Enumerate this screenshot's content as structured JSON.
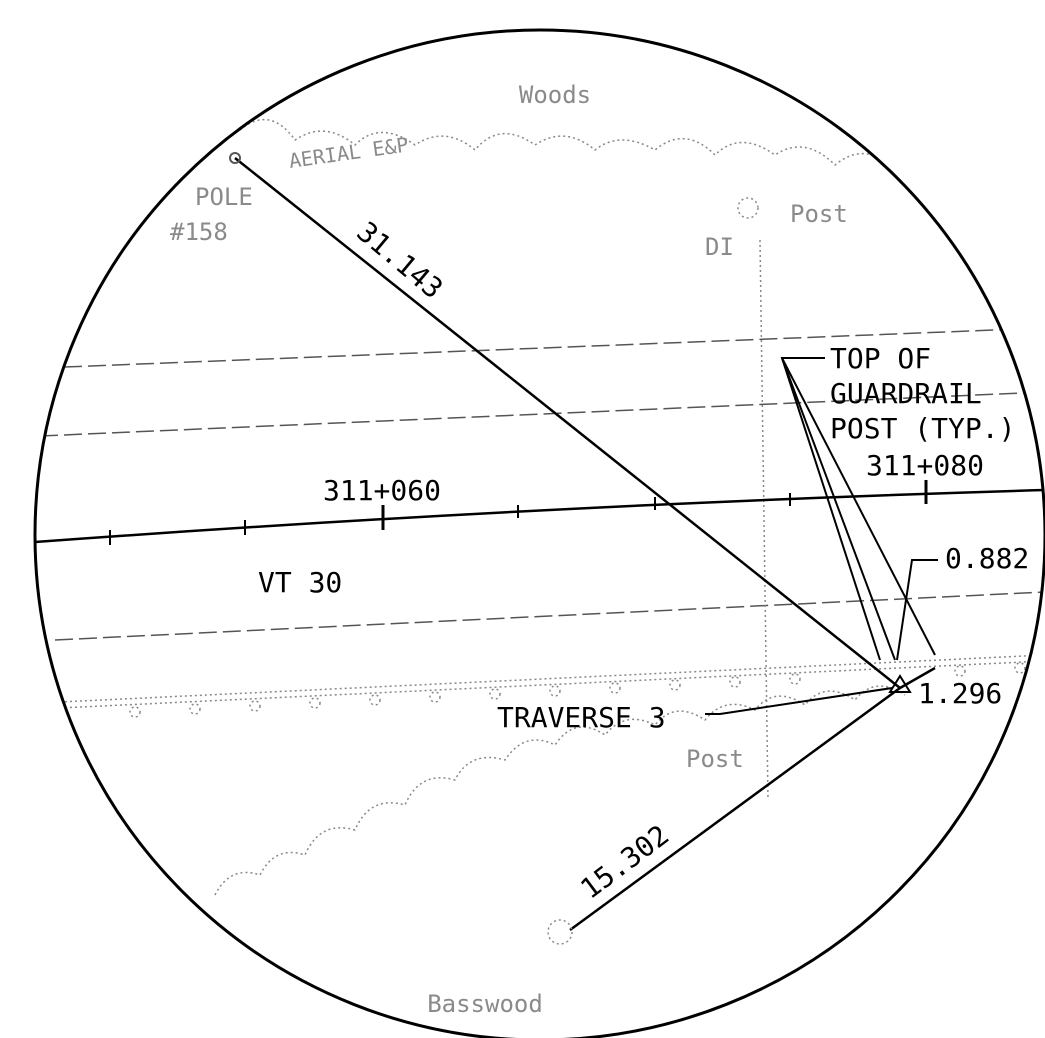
{
  "labels": {
    "woods": "Woods",
    "pole": "POLE",
    "pole_number": "#158",
    "aerial": "AERIAL E&P",
    "post_top": "Post",
    "di": "DI",
    "dist_pole": "31.143",
    "note_line1": "TOP OF",
    "note_line2": "GUARDRAIL",
    "note_line3": "POST (TYP.)",
    "station_080": "311+080",
    "station_060": "311+060",
    "dist_small": "0.882",
    "road": "VT 30",
    "dist_post": "1.296",
    "traverse": "TRAVERSE 3",
    "post_bottom": "Post",
    "dist_tree": "15.302",
    "basswood": "Basswood"
  }
}
